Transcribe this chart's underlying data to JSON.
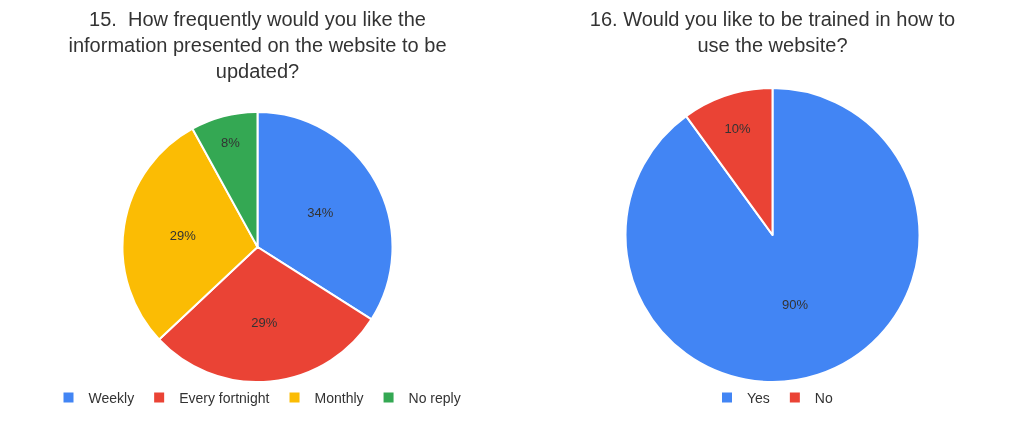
{
  "chart_data": [
    {
      "type": "pie",
      "title": "15.  How frequently would you like the information presented on the website to be updated?",
      "categories": [
        "Weekly",
        "Every fortnight",
        "Monthly",
        "No reply"
      ],
      "values": [
        34,
        29,
        29,
        8
      ],
      "value_labels": [
        "34%",
        "29%",
        "29%",
        "8%"
      ],
      "colors": [
        "#4285f4",
        "#ea4335",
        "#fbbc04",
        "#34a853"
      ],
      "legend": "bottom"
    },
    {
      "type": "pie",
      "title": "16. Would you like to be trained in how to use the website?",
      "categories": [
        "Yes",
        "No"
      ],
      "values": [
        90,
        10
      ],
      "value_labels": [
        "90%",
        "10%"
      ],
      "colors": [
        "#4285f4",
        "#ea4335"
      ],
      "legend": "bottom"
    }
  ]
}
